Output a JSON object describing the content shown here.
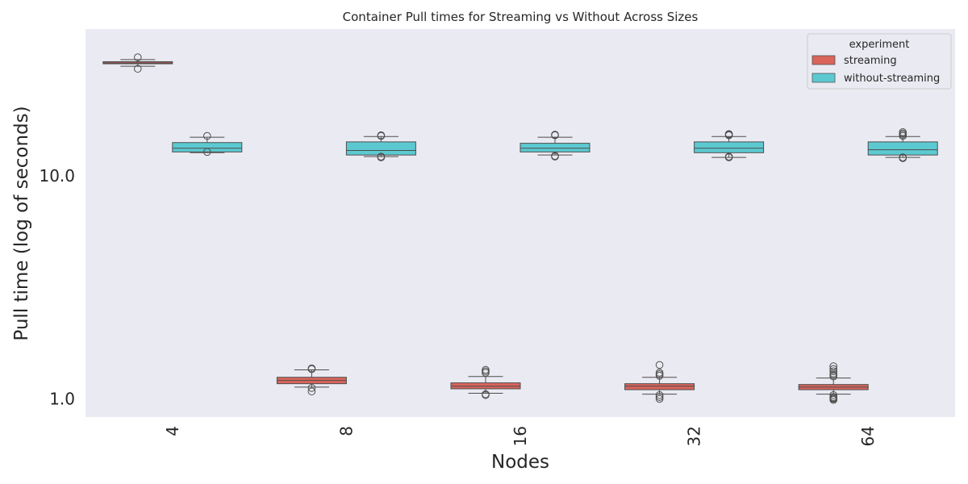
{
  "chart_data": {
    "type": "box",
    "title": "Container Pull times for Streaming vs Without Across Sizes",
    "xlabel": "Nodes",
    "ylabel": "Pull time (log of seconds)",
    "y_scale": "log",
    "ylim": [
      0.8,
      38
    ],
    "y_ticks": [
      1.0,
      10.0
    ],
    "y_tick_labels": [
      "1.0",
      "10.0"
    ],
    "grid": false,
    "categories": [
      "4",
      "8",
      "16",
      "32",
      64
    ],
    "legend": {
      "title": "experiment",
      "position": "top-right"
    },
    "series": [
      {
        "name": "streaming",
        "color": "#d9655b",
        "boxes": [
          {
            "category": "4",
            "whisker_low": 31.0,
            "q1": 31.8,
            "median": 32.1,
            "q3": 32.5,
            "whisker_high": 33.2,
            "outliers": [
              30.2,
              34.0
            ]
          },
          {
            "category": "8",
            "whisker_low": 1.13,
            "q1": 1.17,
            "median": 1.21,
            "q3": 1.25,
            "whisker_high": 1.35,
            "outliers": [
              1.12,
              1.08,
              1.36,
              1.37
            ]
          },
          {
            "category": "16",
            "whisker_low": 1.06,
            "q1": 1.11,
            "median": 1.14,
            "q3": 1.18,
            "whisker_high": 1.26,
            "outliers": [
              1.05,
              1.04,
              1.31,
              1.33,
              1.35
            ]
          },
          {
            "category": "32",
            "whisker_low": 1.05,
            "q1": 1.1,
            "median": 1.14,
            "q3": 1.17,
            "whisker_high": 1.25,
            "outliers": [
              1.04,
              1.02,
              1.0,
              1.27,
              1.29,
              1.31,
              1.42
            ]
          },
          {
            "category": "64",
            "whisker_low": 1.05,
            "q1": 1.1,
            "median": 1.13,
            "q3": 1.16,
            "whisker_high": 1.24,
            "outliers": [
              1.04,
              1.02,
              1.01,
              1.0,
              0.99,
              1.26,
              1.28,
              1.3,
              1.33,
              1.36,
              1.4
            ]
          }
        ]
      },
      {
        "name": "without-streaming",
        "color": "#5cc9d1",
        "boxes": [
          {
            "category": "4",
            "whisker_low": 12.7,
            "q1": 12.8,
            "median": 13.3,
            "q3": 14.1,
            "whisker_high": 14.9,
            "outliers": [
              12.8,
              15.1
            ]
          },
          {
            "category": "8",
            "whisker_low": 12.2,
            "q1": 12.4,
            "median": 13.0,
            "q3": 14.2,
            "whisker_high": 15.0,
            "outliers": [
              12.1,
              12.2,
              15.1,
              15.2
            ]
          },
          {
            "category": "16",
            "whisker_low": 12.4,
            "q1": 12.8,
            "median": 13.3,
            "q3": 14.0,
            "whisker_high": 14.9,
            "outliers": [
              12.2,
              12.3,
              15.2,
              15.3
            ]
          },
          {
            "category": "32",
            "whisker_low": 12.1,
            "q1": 12.7,
            "median": 13.3,
            "q3": 14.2,
            "whisker_high": 15.0,
            "outliers": [
              12.1,
              12.2,
              15.2,
              15.3,
              15.4
            ]
          },
          {
            "category": "64",
            "whisker_low": 12.1,
            "q1": 12.4,
            "median": 13.1,
            "q3": 14.2,
            "whisker_high": 15.0,
            "outliers": [
              12.0,
              12.1,
              15.1,
              15.3,
              15.5,
              15.7
            ]
          }
        ]
      }
    ]
  }
}
